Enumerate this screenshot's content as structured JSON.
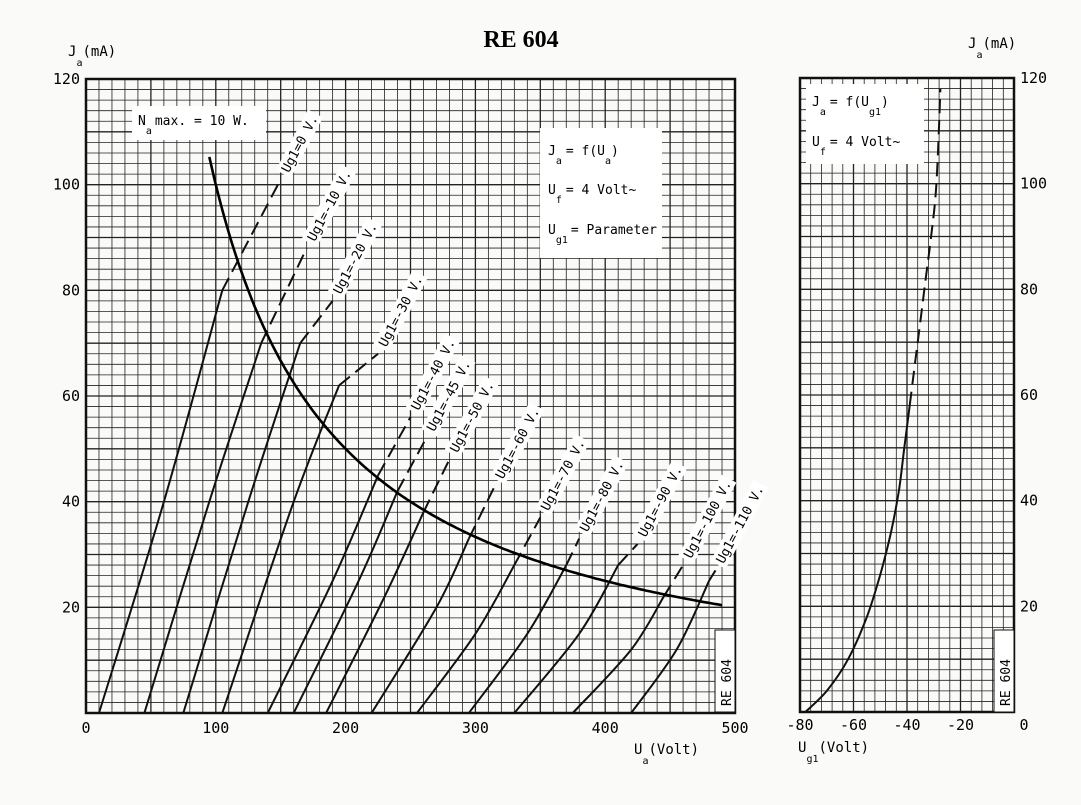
{
  "title": "RE 604",
  "chart_data": [
    {
      "type": "line",
      "y_label_main": "J",
      "y_label_sub": "a",
      "y_label_unit": "(mA)",
      "x_label_main": "U",
      "x_label_sub": "a",
      "x_label_unit": "(Volt)",
      "xlim": [
        0,
        500
      ],
      "ylim": [
        0,
        120
      ],
      "x_ticks": [
        "0",
        "100",
        "200",
        "300",
        "400",
        "500"
      ],
      "y_ticks": [
        "20",
        "40",
        "60",
        "80",
        "100",
        "120"
      ],
      "grid": true,
      "power_limit": {
        "name": "N max. = 10 W.",
        "main": "N",
        "sub": "a",
        "text": "max. = 10 W.",
        "watts": 10
      },
      "info": {
        "line1_main": "J",
        "line1_sub": "a",
        "line1_rest": "= f(U",
        "line1_sub2": "a",
        "line1_end": ")",
        "line2_main": "U",
        "line2_sub": "f",
        "line2_rest": "= 4 Volt~",
        "line3_main": "U",
        "line3_sub": "g1",
        "line3_rest": "= Parameter"
      },
      "corner_label": "RE 604",
      "series": [
        {
          "name": "Ug1=0 V.",
          "x": [
            10,
            60,
            105,
            150
          ],
          "y": [
            0,
            40,
            80,
            101
          ]
        },
        {
          "name": "Ug1=-10 V.",
          "x": [
            45,
            95,
            135,
            170
          ],
          "y": [
            0,
            40,
            70,
            88
          ]
        },
        {
          "name": "Ug1=-20 V.",
          "x": [
            75,
            125,
            165,
            190
          ],
          "y": [
            0,
            40,
            70,
            78
          ]
        },
        {
          "name": "Ug1=-30 V.",
          "x": [
            105,
            160,
            195,
            225
          ],
          "y": [
            0,
            40,
            62,
            68
          ]
        },
        {
          "name": "Ug1=-40 V.",
          "x": [
            140,
            190,
            225,
            250
          ],
          "y": [
            0,
            25,
            45,
            56
          ]
        },
        {
          "name": "Ug1=-45 V.",
          "x": [
            160,
            210,
            240,
            262
          ],
          "y": [
            0,
            25,
            42,
            52
          ]
        },
        {
          "name": "Ug1=-50 V.",
          "x": [
            185,
            230,
            260,
            280
          ],
          "y": [
            0,
            22,
            38,
            48
          ]
        },
        {
          "name": "Ug1=-60 V.",
          "x": [
            220,
            270,
            295,
            315
          ],
          "y": [
            0,
            20,
            33,
            43
          ]
        },
        {
          "name": "Ug1=-70 V.",
          "x": [
            255,
            300,
            330,
            350
          ],
          "y": [
            0,
            15,
            28,
            37
          ]
        },
        {
          "name": "Ug1=-80 V.",
          "x": [
            295,
            340,
            370,
            380
          ],
          "y": [
            0,
            15,
            28,
            33
          ]
        },
        {
          "name": "Ug1=-90 V.",
          "x": [
            330,
            380,
            410,
            425
          ],
          "y": [
            0,
            15,
            28,
            32
          ]
        },
        {
          "name": "Ug1=-100 V.",
          "x": [
            375,
            420,
            445,
            460
          ],
          "y": [
            0,
            12,
            22,
            28
          ]
        },
        {
          "name": "Ug1=-110 V.",
          "x": [
            420,
            455,
            480,
            485
          ],
          "y": [
            0,
            12,
            25,
            27
          ]
        }
      ]
    },
    {
      "type": "line",
      "y_label_main": "J",
      "y_label_sub": "a",
      "y_label_unit": "(mA)",
      "x_label_main": "U",
      "x_label_sub": "g1",
      "x_label_unit": "(Volt)",
      "xlim": [
        -80,
        0
      ],
      "ylim": [
        0,
        120
      ],
      "x_ticks": [
        "-80",
        "-60",
        "-40",
        "-20",
        "0"
      ],
      "y_ticks": [
        "20",
        "40",
        "60",
        "80",
        "100",
        "120"
      ],
      "grid": true,
      "info": {
        "line1_main": "J",
        "line1_sub": "a",
        "line1_rest": "= f(U",
        "line1_sub2": "g1",
        "line1_end": ")",
        "line2_main": "U",
        "line2_sub": "f",
        "line2_rest": "= 4 Volt~"
      },
      "corner_label": "RE 604",
      "series": [
        {
          "x": [
            -78,
            -70,
            -62,
            -55,
            -50,
            -46,
            -43,
            -41,
            -39,
            -37,
            -35,
            -33,
            -31,
            -29,
            -27.5
          ],
          "y": [
            0,
            4,
            10,
            18,
            26,
            34,
            42,
            50,
            58,
            66,
            74,
            82,
            90,
            100,
            118
          ]
        }
      ]
    }
  ]
}
